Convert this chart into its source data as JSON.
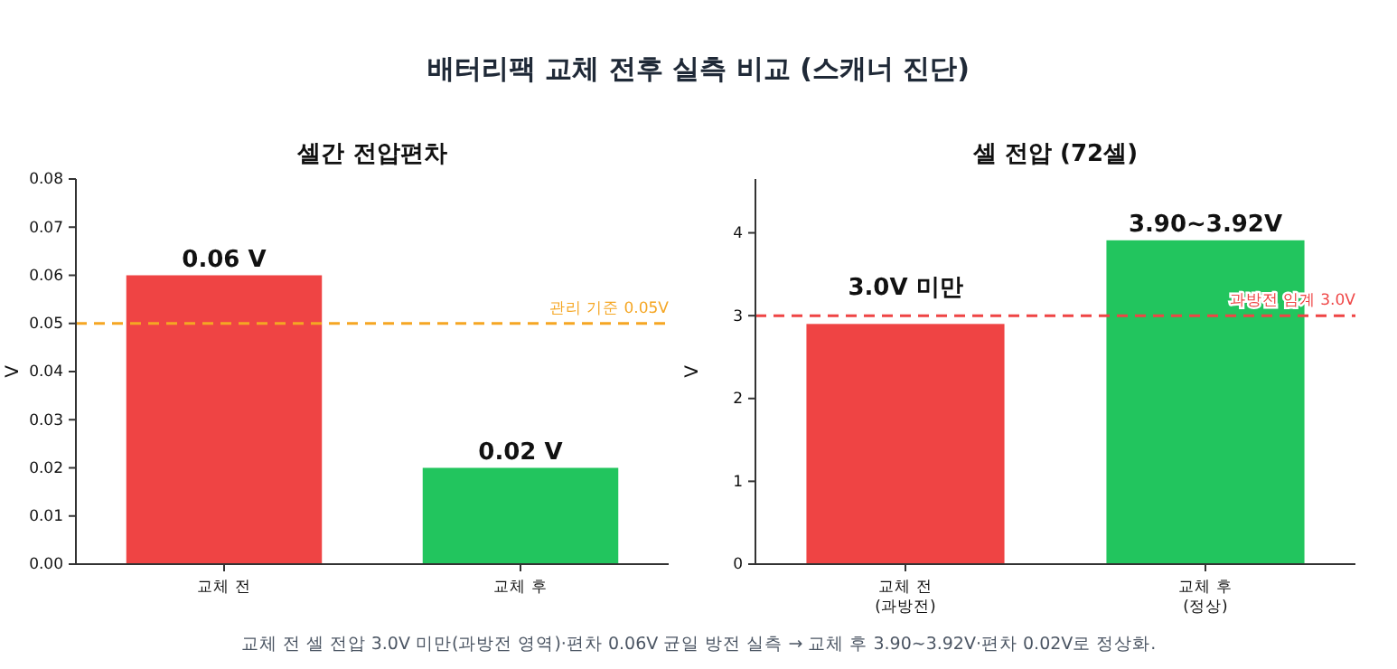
{
  "chart_data": [
    {
      "type": "bar",
      "title": "셀간 전압편차",
      "ylabel": "V",
      "categories": [
        "교체 전",
        "교체 후"
      ],
      "values": [
        0.06,
        0.02
      ],
      "colors": [
        "#ef4444",
        "#22c55e"
      ],
      "value_labels": [
        "0.06 V",
        "0.02 V"
      ],
      "ylim": [
        0,
        0.08
      ],
      "yticks": [
        {
          "value": 0,
          "label": "0.00"
        },
        {
          "value": 0.01,
          "label": "0.01"
        },
        {
          "value": 0.02,
          "label": "0.02"
        },
        {
          "value": 0.03,
          "label": "0.03"
        },
        {
          "value": 0.04,
          "label": "0.04"
        },
        {
          "value": 0.05,
          "label": "0.05"
        },
        {
          "value": 0.06,
          "label": "0.06"
        },
        {
          "value": 0.07,
          "label": "0.07"
        },
        {
          "value": 0.08,
          "label": "0.08"
        }
      ],
      "grid": false,
      "ref_lines": [
        {
          "axis": "y",
          "value": 0.05,
          "label": "관리 기준 0.05V",
          "color": "#f5a623",
          "line_style": "dashed"
        }
      ]
    },
    {
      "type": "bar",
      "title": "셀 전압 (72셀)",
      "ylabel": "V",
      "categories": [
        "교체 전\n(과방전)",
        "교체 후\n(정상)"
      ],
      "values": [
        2.9,
        3.91
      ],
      "colors": [
        "#ef4444",
        "#22c55e"
      ],
      "ylim": [
        0,
        4.65
      ],
      "yticks": [
        0,
        1,
        2,
        3,
        4
      ],
      "grid": false,
      "ref_lines": [
        {
          "axis": "y",
          "value": 3,
          "label": "과방전 임계 3.0V",
          "color": "#ef4444",
          "line_style": "dashed"
        }
      ],
      "annotations": [
        {
          "text": "3.0V 미만",
          "x": "교체 전\n(과방전)",
          "y": 2.9
        },
        {
          "text": "3.90~3.92V",
          "x": "교체 후\n(정상)",
          "y": 3.91
        },
        "배터리팩 교체 전후 실측 비교 (스캐너 진단)",
        "교체 전 셀 전압 3.0V 미만(과방전 영역)·편차 0.06V 균일 방전 실측 → 교체 후 3.90~3.92V·편차 0.02V로 정상화."
      ]
    }
  ]
}
